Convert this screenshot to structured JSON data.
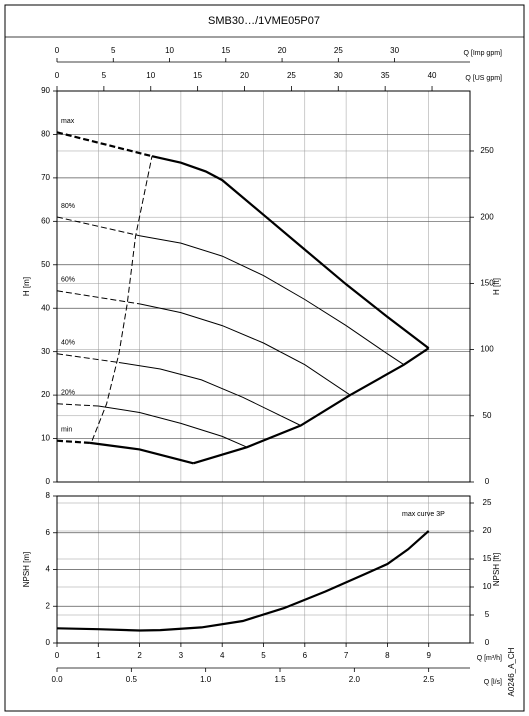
{
  "chart_data": [
    {
      "type": "line",
      "title": "SMB30…/1VME05P07",
      "ylabel": "H [m]",
      "ylim": [
        0,
        90
      ],
      "yticks": [
        0,
        10,
        20,
        30,
        40,
        50,
        60,
        70,
        80,
        90
      ],
      "y2label": "H [ft]",
      "y2lim": [
        0,
        295.3
      ],
      "y2ticks": [
        0,
        50,
        100,
        150,
        200,
        250
      ],
      "xlim": [
        0,
        10
      ],
      "xticks": [
        0,
        1,
        2,
        3,
        4,
        5,
        6,
        7,
        8,
        9,
        10
      ],
      "top_axes": [
        {
          "label": "Q [Imp gpm]",
          "xlim": [
            0,
            36.7
          ],
          "xticks": [
            0,
            5,
            10,
            15,
            20,
            25,
            30
          ]
        },
        {
          "label": "Q [US gpm]",
          "xlim": [
            0,
            44.05
          ],
          "xticks": [
            0,
            5,
            10,
            15,
            20,
            25,
            30,
            35,
            40
          ]
        }
      ],
      "grid": true,
      "series": [
        {
          "name": "max",
          "color": "#000000",
          "bold": true,
          "segments": [
            {
              "style": "dashed",
              "x": [
                0,
                2.3
              ],
              "values": [
                80.5,
                75
              ]
            },
            {
              "style": "solid",
              "x": [
                2.3,
                3,
                3.6,
                4,
                5,
                6,
                7,
                8,
                9
              ],
              "values": [
                75,
                73.5,
                71.5,
                69.5,
                61.5,
                53.5,
                45.5,
                38,
                30.8
              ]
            }
          ]
        },
        {
          "name": "80%",
          "color": "#000000",
          "bold": false,
          "segments": [
            {
              "style": "dashed",
              "x": [
                0,
                2
              ],
              "values": [
                61,
                56.7
              ]
            },
            {
              "style": "solid",
              "x": [
                2,
                3,
                4,
                5,
                6,
                7,
                8,
                8.4
              ],
              "values": [
                56.7,
                55,
                52,
                47.5,
                42,
                36,
                29.5,
                27
              ]
            }
          ]
        },
        {
          "name": "60%",
          "color": "#000000",
          "bold": false,
          "segments": [
            {
              "style": "dashed",
              "x": [
                0,
                2
              ],
              "values": [
                44,
                41
              ]
            },
            {
              "style": "solid",
              "x": [
                2,
                3,
                4,
                5,
                6,
                7.1
              ],
              "values": [
                41,
                39,
                36,
                32,
                27,
                20
              ]
            }
          ]
        },
        {
          "name": "40%",
          "color": "#000000",
          "bold": false,
          "segments": [
            {
              "style": "dashed",
              "x": [
                0,
                1.5
              ],
              "values": [
                29.5,
                27.5
              ]
            },
            {
              "style": "solid",
              "x": [
                1.5,
                2.5,
                3.5,
                4.5,
                5.9
              ],
              "values": [
                27.5,
                26,
                23.5,
                19.5,
                13
              ]
            }
          ]
        },
        {
          "name": "20%",
          "color": "#000000",
          "bold": false,
          "segments": [
            {
              "style": "dashed",
              "x": [
                0,
                1
              ],
              "values": [
                18,
                17.5
              ]
            },
            {
              "style": "solid",
              "x": [
                1,
                2,
                3,
                4,
                4.6
              ],
              "values": [
                17.5,
                16,
                13.5,
                10.5,
                8
              ]
            }
          ]
        },
        {
          "name": "min",
          "color": "#000000",
          "bold": true,
          "segments": [
            {
              "style": "dashed",
              "x": [
                0,
                0.8
              ],
              "values": [
                9.5,
                9
              ]
            },
            {
              "style": "solid",
              "x": [
                0.8,
                2,
                3.3
              ],
              "values": [
                9,
                7.5,
                4.3
              ]
            }
          ]
        },
        {
          "color": "#000000",
          "bold": true,
          "segments": [
            {
              "style": "solid",
              "x": [
                3.3,
                4.6,
                5.9,
                7.1,
                8.4,
                9
              ],
              "values": [
                4.3,
                8,
                13,
                20,
                27,
                30.8
              ]
            }
          ]
        },
        {
          "color": "#000000",
          "bold": false,
          "segments": [
            {
              "style": "dashed",
              "x": [
                0.85,
                1.2,
                1.5,
                1.7,
                1.9,
                2.3
              ],
              "values": [
                9.5,
                18,
                29.5,
                41,
                56.5,
                75
              ]
            }
          ]
        }
      ]
    },
    {
      "type": "line",
      "ylabel": "NPSH [m]",
      "ylim": [
        0,
        8
      ],
      "yticks": [
        0,
        2,
        4,
        6,
        8
      ],
      "y2label": "NPSH [ft]",
      "y2lim": [
        0,
        26.25
      ],
      "y2ticks": [
        0,
        5,
        10,
        15,
        20,
        25
      ],
      "xlabel": "Q [m³/h]",
      "xlim": [
        0,
        10
      ],
      "xticks": [
        0,
        1,
        2,
        3,
        4,
        5,
        6,
        7,
        8,
        9
      ],
      "bottom_axes": [
        {
          "label": "Q [l/s]",
          "xlim": [
            0,
            2.778
          ],
          "xticks": [
            {
              "value": 0,
              "label": "0.0"
            },
            0.5,
            {
              "value": 1,
              "label": "1.0"
            },
            1.5,
            {
              "value": 2,
              "label": "2.0"
            },
            2.5
          ]
        }
      ],
      "grid": true,
      "annotation": "max curve 3P",
      "series": [
        {
          "color": "#000000",
          "bold": true,
          "segments": [
            {
              "style": "solid",
              "x": [
                0,
                1,
                2,
                2.5,
                3.5,
                4.5,
                5.5,
                6.5,
                7.5,
                8,
                8.5,
                9
              ],
              "values": [
                0.8,
                0.75,
                0.68,
                0.7,
                0.85,
                1.2,
                1.9,
                2.8,
                3.8,
                4.3,
                5.1,
                6.1
              ]
            }
          ]
        }
      ]
    }
  ],
  "document_code": "A0246_A_CH"
}
